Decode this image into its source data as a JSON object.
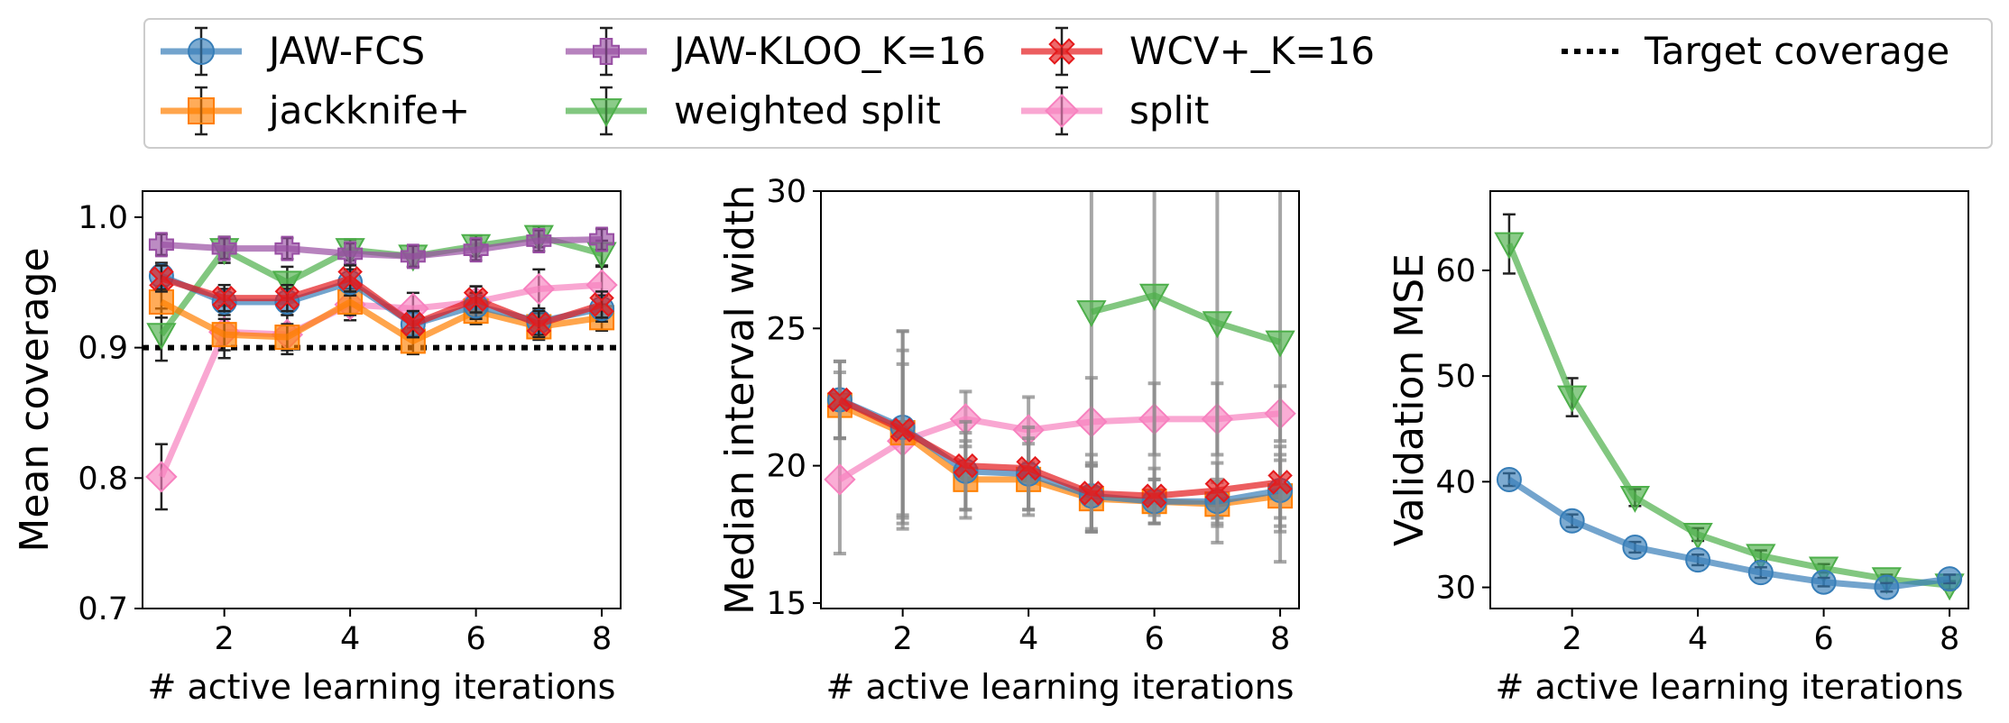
{
  "legend": {
    "placement": "top",
    "entries": [
      {
        "label": "JAW-FCS",
        "color": "#377eb8",
        "marker": "circle"
      },
      {
        "label": "JAW-KLOO_K=16",
        "color": "#984ea3",
        "marker": "plus"
      },
      {
        "label": "WCV+_K=16",
        "color": "#e41a1c",
        "marker": "x"
      },
      {
        "label": "Target coverage",
        "color": "#000000",
        "marker": "dotted-line"
      },
      {
        "label": "jackknife+",
        "color": "#ff7f00",
        "marker": "square"
      },
      {
        "label": "weighted split",
        "color": "#4daf4a",
        "marker": "triangle-down"
      },
      {
        "label": "split",
        "color": "#f781bf",
        "marker": "diamond"
      }
    ]
  },
  "chart_data": [
    {
      "type": "line",
      "xlabel": "# active learning iterations",
      "ylabel": "Mean coverage",
      "xlim": [
        0.7,
        8.3
      ],
      "ylim": [
        0.7,
        1.02
      ],
      "xticks": [
        2,
        4,
        6,
        8
      ],
      "yticks": [
        0.7,
        0.8,
        0.9,
        1.0
      ],
      "ytick_labels": [
        "0.7",
        "0.8",
        "0.9",
        "1.0"
      ],
      "x": [
        1,
        2,
        3,
        4,
        5,
        6,
        7,
        8
      ],
      "hline": {
        "name": "Target coverage",
        "y": 0.9,
        "color": "#000000"
      },
      "series": [
        {
          "name": "split",
          "color": "#f781bf",
          "marker": "diamond",
          "values": [
            0.801,
            0.912,
            0.91,
            0.933,
            0.93,
            0.935,
            0.945,
            0.948
          ],
          "err": [
            0.025,
            0.02,
            0.015,
            0.012,
            0.012,
            0.012,
            0.015,
            0.015
          ]
        },
        {
          "name": "weighted split",
          "color": "#4daf4a",
          "marker": "triangle-down",
          "values": [
            0.91,
            0.975,
            0.95,
            0.975,
            0.97,
            0.978,
            0.985,
            0.972
          ],
          "err": [
            0.02,
            0.01,
            0.012,
            0.008,
            0.008,
            0.008,
            0.008,
            0.01
          ]
        },
        {
          "name": "JAW-KLOO_K=16",
          "color": "#984ea3",
          "marker": "plus",
          "values": [
            0.979,
            0.976,
            0.976,
            0.972,
            0.97,
            0.975,
            0.982,
            0.983
          ],
          "err": [
            0.008,
            0.008,
            0.008,
            0.008,
            0.008,
            0.008,
            0.008,
            0.008
          ]
        },
        {
          "name": "jackknife+",
          "color": "#ff7f00",
          "marker": "square",
          "values": [
            0.935,
            0.91,
            0.908,
            0.935,
            0.905,
            0.928,
            0.916,
            0.923
          ],
          "err": [
            0.012,
            0.012,
            0.01,
            0.01,
            0.01,
            0.01,
            0.01,
            0.01
          ]
        },
        {
          "name": "JAW-FCS",
          "color": "#377eb8",
          "marker": "circle",
          "values": [
            0.955,
            0.935,
            0.935,
            0.95,
            0.918,
            0.932,
            0.92,
            0.93
          ],
          "err": [
            0.01,
            0.01,
            0.01,
            0.01,
            0.01,
            0.01,
            0.01,
            0.01
          ]
        },
        {
          "name": "WCV+_K=16",
          "color": "#e41a1c",
          "marker": "x",
          "values": [
            0.953,
            0.938,
            0.938,
            0.953,
            0.918,
            0.937,
            0.918,
            0.933
          ],
          "err": [
            0.01,
            0.01,
            0.01,
            0.01,
            0.01,
            0.01,
            0.01,
            0.01
          ]
        }
      ]
    },
    {
      "type": "line",
      "xlabel": "# active learning iterations",
      "ylabel": "Median interval width",
      "xlim": [
        0.7,
        8.3
      ],
      "ylim": [
        14.8,
        30
      ],
      "xticks": [
        2,
        4,
        6,
        8
      ],
      "yticks": [
        15,
        20,
        25,
        30
      ],
      "ytick_labels": [
        "15",
        "20",
        "25",
        "30"
      ],
      "x": [
        1,
        2,
        3,
        4,
        5,
        6,
        7,
        8
      ],
      "series": [
        {
          "name": "split",
          "color": "#f781bf",
          "marker": "diamond",
          "values": [
            19.5,
            20.9,
            21.7,
            21.3,
            21.6,
            21.7,
            21.7,
            21.9
          ],
          "err": [
            2.7,
            2.8,
            1.0,
            1.2,
            1.6,
            1.3,
            1.3,
            1.0
          ]
        },
        {
          "name": "weighted split",
          "color": "#4daf4a",
          "marker": "triangle-down",
          "values": [
            null,
            null,
            null,
            null,
            25.6,
            26.2,
            25.2,
            24.5
          ],
          "err": [
            null,
            null,
            null,
            null,
            8.0,
            8.0,
            8.0,
            8.0
          ]
        },
        {
          "name": "jackknife+",
          "color": "#ff7f00",
          "marker": "square",
          "values": [
            22.2,
            21.2,
            19.5,
            19.5,
            18.8,
            18.7,
            18.6,
            18.9
          ],
          "err": [
            1.2,
            3.0,
            1.4,
            1.3,
            1.2,
            0.8,
            0.8,
            1.3
          ]
        },
        {
          "name": "JAW-FCS",
          "color": "#377eb8",
          "marker": "circle",
          "values": [
            22.4,
            21.4,
            19.8,
            19.7,
            18.9,
            18.7,
            18.7,
            19.1
          ],
          "err": [
            1.4,
            3.5,
            1.4,
            1.3,
            1.2,
            0.8,
            0.8,
            1.3
          ]
        },
        {
          "name": "WCV+_K=16",
          "color": "#e41a1c",
          "marker": "x",
          "values": [
            22.4,
            21.3,
            20.0,
            19.9,
            19.0,
            18.9,
            19.1,
            19.4
          ],
          "err": [
            1.4,
            3.6,
            1.6,
            1.5,
            1.4,
            1.0,
            1.0,
            1.3
          ]
        }
      ]
    },
    {
      "type": "line",
      "xlabel": "# active learning iterations",
      "ylabel": "Validation MSE",
      "xlim": [
        0.7,
        8.3
      ],
      "ylim": [
        28,
        67.5
      ],
      "xticks": [
        2,
        4,
        6,
        8
      ],
      "yticks": [
        30,
        40,
        50,
        60
      ],
      "ytick_labels": [
        "30",
        "40",
        "50",
        "60"
      ],
      "x": [
        1,
        2,
        3,
        4,
        5,
        6,
        7,
        8
      ],
      "series": [
        {
          "name": "weighted split",
          "color": "#4daf4a",
          "marker": "triangle-down",
          "values": [
            62.5,
            48.0,
            38.5,
            35.0,
            33.0,
            31.8,
            30.8,
            30.2
          ],
          "err": [
            2.8,
            1.8,
            0.8,
            0.6,
            0.5,
            0.4,
            0.4,
            0.4
          ]
        },
        {
          "name": "JAW-FCS",
          "color": "#377eb8",
          "marker": "circle",
          "values": [
            40.2,
            36.3,
            33.8,
            32.6,
            31.4,
            30.5,
            30.0,
            30.8
          ],
          "err": [
            0.6,
            0.6,
            0.5,
            0.5,
            0.5,
            0.4,
            0.4,
            0.4
          ]
        }
      ]
    }
  ]
}
